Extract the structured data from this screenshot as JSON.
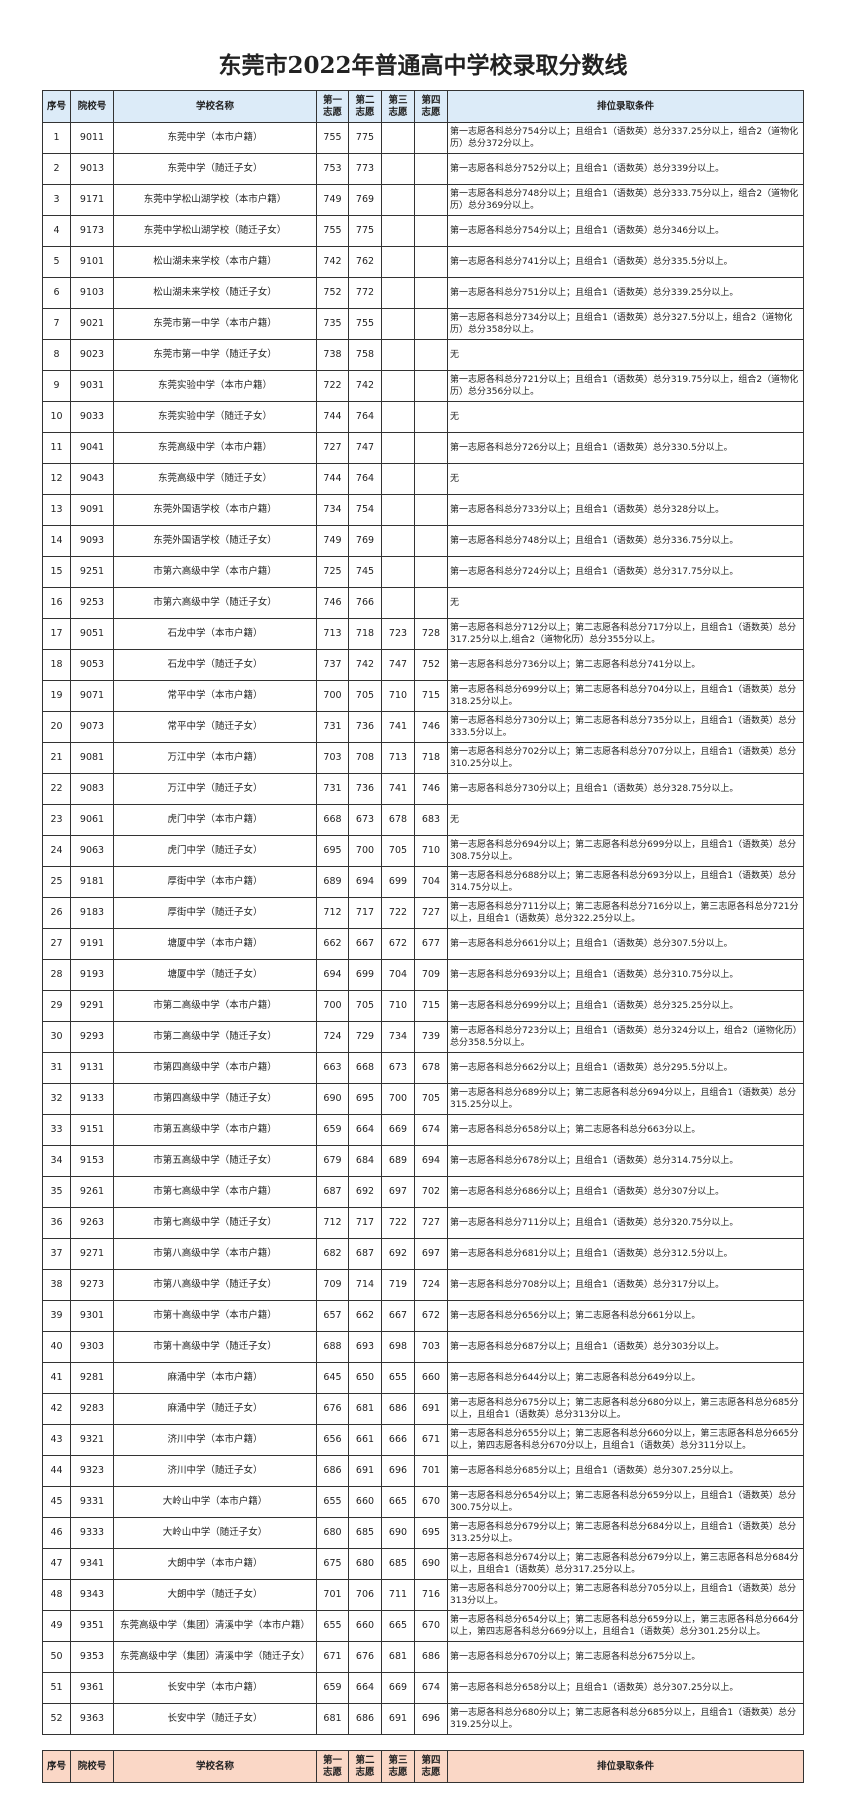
{
  "title": "东莞市2022年普通高中学校录取分数线",
  "table": {
    "header": [
      "序号",
      "院校号",
      "学校名称",
      "第一志愿",
      "第二志愿",
      "第三志愿",
      "第四志愿",
      "排位录取条件"
    ],
    "rows": [
      [
        1,
        9011,
        "东莞中学（本市户籍）",
        755,
        775,
        null,
        null,
        "第一志愿各科总分754分以上；且组合1（语数英）总分337.25分以上，组合2（道物化历）总分372分以上。"
      ],
      [
        2,
        9013,
        "东莞中学（随迁子女）",
        753,
        773,
        null,
        null,
        "第一志愿各科总分752分以上；且组合1（语数英）总分339分以上。"
      ],
      [
        3,
        9171,
        "东莞中学松山湖学校（本市户籍）",
        749,
        769,
        null,
        null,
        "第一志愿各科总分748分以上；且组合1（语数英）总分333.75分以上，组合2（道物化历）总分369分以上。"
      ],
      [
        4,
        9173,
        "东莞中学松山湖学校（随迁子女）",
        755,
        775,
        null,
        null,
        "第一志愿各科总分754分以上；且组合1（语数英）总分346分以上。"
      ],
      [
        5,
        9101,
        "松山湖未来学校（本市户籍）",
        742,
        762,
        null,
        null,
        "第一志愿各科总分741分以上；且组合1（语数英）总分335.5分以上。"
      ],
      [
        6,
        9103,
        "松山湖未来学校（随迁子女）",
        752,
        772,
        null,
        null,
        "第一志愿各科总分751分以上；且组合1（语数英）总分339.25分以上。"
      ],
      [
        7,
        9021,
        "东莞市第一中学（本市户籍）",
        735,
        755,
        null,
        null,
        "第一志愿各科总分734分以上；且组合1（语数英）总分327.5分以上，组合2（道物化历）总分358分以上。"
      ],
      [
        8,
        9023,
        "东莞市第一中学（随迁子女）",
        738,
        758,
        null,
        null,
        "无"
      ],
      [
        9,
        9031,
        "东莞实验中学（本市户籍）",
        722,
        742,
        null,
        null,
        "第一志愿各科总分721分以上；且组合1（语数英）总分319.75分以上，组合2（道物化历）总分356分以上。"
      ],
      [
        10,
        9033,
        "东莞实验中学（随迁子女）",
        744,
        764,
        null,
        null,
        "无"
      ],
      [
        11,
        9041,
        "东莞高级中学（本市户籍）",
        727,
        747,
        null,
        null,
        "第一志愿各科总分726分以上；且组合1（语数英）总分330.5分以上。"
      ],
      [
        12,
        9043,
        "东莞高级中学（随迁子女）",
        744,
        764,
        null,
        null,
        "无"
      ],
      [
        13,
        9091,
        "东莞外国语学校（本市户籍）",
        734,
        754,
        null,
        null,
        "第一志愿各科总分733分以上；且组合1（语数英）总分328分以上。"
      ],
      [
        14,
        9093,
        "东莞外国语学校（随迁子女）",
        749,
        769,
        null,
        null,
        "第一志愿各科总分748分以上；且组合1（语数英）总分336.75分以上。"
      ],
      [
        15,
        9251,
        "市第六高级中学（本市户籍）",
        725,
        745,
        null,
        null,
        "第一志愿各科总分724分以上；且组合1（语数英）总分317.75分以上。"
      ],
      [
        16,
        9253,
        "市第六高级中学（随迁子女）",
        746,
        766,
        null,
        null,
        "无"
      ],
      [
        17,
        9051,
        "石龙中学（本市户籍）",
        713,
        718,
        723,
        728,
        "第一志愿各科总分712分以上；第二志愿各科总分717分以上，且组合1（语数英）总分317.25分以上,组合2（道物化历）总分355分以上。"
      ],
      [
        18,
        9053,
        "石龙中学（随迁子女）",
        737,
        742,
        747,
        752,
        "第一志愿各科总分736分以上；第二志愿各科总分741分以上。"
      ],
      [
        19,
        9071,
        "常平中学（本市户籍）",
        700,
        705,
        710,
        715,
        "第一志愿各科总分699分以上；第二志愿各科总分704分以上，且组合1（语数英）总分318.25分以上。"
      ],
      [
        20,
        9073,
        "常平中学（随迁子女）",
        731,
        736,
        741,
        746,
        "第一志愿各科总分730分以上；第二志愿各科总分735分以上，且组合1（语数英）总分333.5分以上。"
      ],
      [
        21,
        9081,
        "万江中学（本市户籍）",
        703,
        708,
        713,
        718,
        "第一志愿各科总分702分以上；第二志愿各科总分707分以上，且组合1（语数英）总分310.25分以上。"
      ],
      [
        22,
        9083,
        "万江中学（随迁子女）",
        731,
        736,
        741,
        746,
        "第一志愿各科总分730分以上；且组合1（语数英）总分328.75分以上。"
      ],
      [
        23,
        9061,
        "虎门中学（本市户籍）",
        668,
        673,
        678,
        683,
        "无"
      ],
      [
        24,
        9063,
        "虎门中学（随迁子女）",
        695,
        700,
        705,
        710,
        "第一志愿各科总分694分以上；第二志愿各科总分699分以上，且组合1（语数英）总分308.75分以上。"
      ],
      [
        25,
        9181,
        "厚街中学（本市户籍）",
        689,
        694,
        699,
        704,
        "第一志愿各科总分688分以上；第二志愿各科总分693分以上，且组合1（语数英）总分314.75分以上。"
      ],
      [
        26,
        9183,
        "厚街中学（随迁子女）",
        712,
        717,
        722,
        727,
        "第一志愿各科总分711分以上；第二志愿各科总分716分以上，第三志愿各科总分721分以上，且组合1（语数英）总分322.25分以上。"
      ],
      [
        27,
        9191,
        "塘厦中学（本市户籍）",
        662,
        667,
        672,
        677,
        "第一志愿各科总分661分以上；且组合1（语数英）总分307.5分以上。"
      ],
      [
        28,
        9193,
        "塘厦中学（随迁子女）",
        694,
        699,
        704,
        709,
        "第一志愿各科总分693分以上；且组合1（语数英）总分310.75分以上。"
      ],
      [
        29,
        9291,
        "市第二高级中学（本市户籍）",
        700,
        705,
        710,
        715,
        "第一志愿各科总分699分以上；且组合1（语数英）总分325.25分以上。"
      ],
      [
        30,
        9293,
        "市第二高级中学（随迁子女）",
        724,
        729,
        734,
        739,
        "第一志愿各科总分723分以上；且组合1（语数英）总分324分以上，组合2（道物化历）总分358.5分以上。"
      ],
      [
        31,
        9131,
        "市第四高级中学（本市户籍）",
        663,
        668,
        673,
        678,
        "第一志愿各科总分662分以上；且组合1（语数英）总分295.5分以上。"
      ],
      [
        32,
        9133,
        "市第四高级中学（随迁子女）",
        690,
        695,
        700,
        705,
        "第一志愿各科总分689分以上；第二志愿各科总分694分以上，且组合1（语数英）总分315.25分以上。"
      ],
      [
        33,
        9151,
        "市第五高级中学（本市户籍）",
        659,
        664,
        669,
        674,
        "第一志愿各科总分658分以上；第二志愿各科总分663分以上。"
      ],
      [
        34,
        9153,
        "市第五高级中学（随迁子女）",
        679,
        684,
        689,
        694,
        "第一志愿各科总分678分以上；且组合1（语数英）总分314.75分以上。"
      ],
      [
        35,
        9261,
        "市第七高级中学（本市户籍）",
        687,
        692,
        697,
        702,
        "第一志愿各科总分686分以上；且组合1（语数英）总分307分以上。"
      ],
      [
        36,
        9263,
        "市第七高级中学（随迁子女）",
        712,
        717,
        722,
        727,
        "第一志愿各科总分711分以上；且组合1（语数英）总分320.75分以上。"
      ],
      [
        37,
        9271,
        "市第八高级中学（本市户籍）",
        682,
        687,
        692,
        697,
        "第一志愿各科总分681分以上；且组合1（语数英）总分312.5分以上。"
      ],
      [
        38,
        9273,
        "市第八高级中学（随迁子女）",
        709,
        714,
        719,
        724,
        "第一志愿各科总分708分以上；且组合1（语数英）总分317分以上。"
      ],
      [
        39,
        9301,
        "市第十高级中学（本市户籍）",
        657,
        662,
        667,
        672,
        "第一志愿各科总分656分以上；第二志愿各科总分661分以上。"
      ],
      [
        40,
        9303,
        "市第十高级中学（随迁子女）",
        688,
        693,
        698,
        703,
        "第一志愿各科总分687分以上；且组合1（语数英）总分303分以上。"
      ],
      [
        41,
        9281,
        "麻涌中学（本市户籍）",
        645,
        650,
        655,
        660,
        "第一志愿各科总分644分以上；第二志愿各科总分649分以上。"
      ],
      [
        42,
        9283,
        "麻涌中学（随迁子女）",
        676,
        681,
        686,
        691,
        "第一志愿各科总分675分以上；第二志愿各科总分680分以上，第三志愿各科总分685分以上，且组合1（语数英）总分313分以上。"
      ],
      [
        43,
        9321,
        "济川中学（本市户籍）",
        656,
        661,
        666,
        671,
        "第一志愿各科总分655分以上；第二志愿各科总分660分以上，第三志愿各科总分665分以上，第四志愿各科总分670分以上，且组合1（语数英）总分311分以上。"
      ],
      [
        44,
        9323,
        "济川中学（随迁子女）",
        686,
        691,
        696,
        701,
        "第一志愿各科总分685分以上；且组合1（语数英）总分307.25分以上。"
      ],
      [
        45,
        9331,
        "大岭山中学（本市户籍）",
        655,
        660,
        665,
        670,
        "第一志愿各科总分654分以上；第二志愿各科总分659分以上，且组合1（语数英）总分300.75分以上。"
      ],
      [
        46,
        9333,
        "大岭山中学（随迁子女）",
        680,
        685,
        690,
        695,
        "第一志愿各科总分679分以上；第二志愿各科总分684分以上，且组合1（语数英）总分313.25分以上。"
      ],
      [
        47,
        9341,
        "大朗中学（本市户籍）",
        675,
        680,
        685,
        690,
        "第一志愿各科总分674分以上；第二志愿各科总分679分以上，第三志愿各科总分684分以上，且组合1（语数英）总分317.25分以上。"
      ],
      [
        48,
        9343,
        "大朗中学（随迁子女）",
        701,
        706,
        711,
        716,
        "第一志愿各科总分700分以上；第二志愿各科总分705分以上，且组合1（语数英）总分313分以上。"
      ],
      [
        49,
        9351,
        "东莞高级中学（集团）清溪中学（本市户籍）",
        655,
        660,
        665,
        670,
        "第一志愿各科总分654分以上；第二志愿各科总分659分以上，第三志愿各科总分664分以上，第四志愿各科总分669分以上，且组合1（语数英）总分301.25分以上。"
      ],
      [
        50,
        9353,
        "东莞高级中学（集团）清溪中学（随迁子女）",
        671,
        676,
        681,
        686,
        "第一志愿各科总分670分以上；第二志愿各科总分675分以上。"
      ],
      [
        51,
        9361,
        "长安中学（本市户籍）",
        659,
        664,
        669,
        674,
        "第一志愿各科总分658分以上；且组合1（语数英）总分307.25分以上。"
      ],
      [
        52,
        9363,
        "长安中学（随迁子女）",
        681,
        686,
        691,
        696,
        "第一志愿各科总分680分以上；第二志愿各科总分685分以上，且组合1（语数英）总分319.25分以上。"
      ]
    ]
  }
}
